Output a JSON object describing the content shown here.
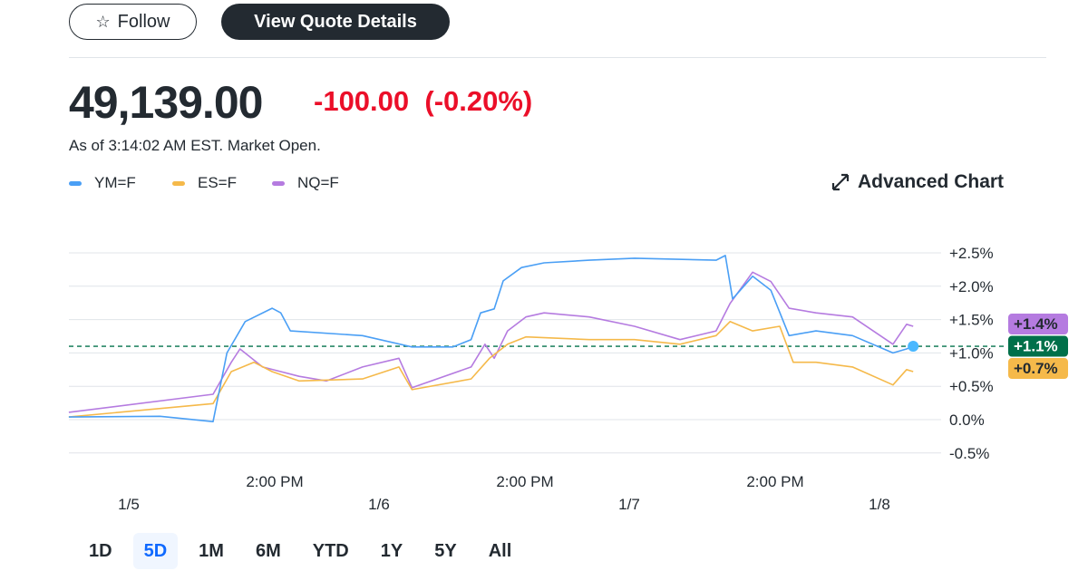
{
  "header": {
    "follow_label": "Follow",
    "follow_icon": "star-outline-icon",
    "quote_label": "View Quote Details"
  },
  "quote": {
    "price": "49,139.00",
    "change": "-100.00",
    "change_pct": "(-0.20%)",
    "as_of": "As of 3:14:02 AM EST. Market Open.",
    "change_color": "#eb0f29"
  },
  "legend": [
    {
      "label": "YM=F",
      "color": "#4a9ff5"
    },
    {
      "label": "ES=F",
      "color": "#f5b94a"
    },
    {
      "label": "NQ=F",
      "color": "#b57be0"
    }
  ],
  "advanced_chart": {
    "label": "Advanced Chart",
    "icon": "expand-arrows-icon"
  },
  "timeframes": [
    {
      "label": "1D"
    },
    {
      "label": "5D",
      "selected": true
    },
    {
      "label": "1M"
    },
    {
      "label": "6M"
    },
    {
      "label": "YTD"
    },
    {
      "label": "1Y"
    },
    {
      "label": "5Y"
    },
    {
      "label": "All"
    }
  ],
  "chart_data": {
    "type": "line",
    "ylim": [
      -0.5,
      2.5
    ],
    "yticks": [
      "+2.5%",
      "+2.0%",
      "+1.5%",
      "+1.0%",
      "+0.5%",
      "0.0%",
      "-0.5%"
    ],
    "ytick_values": [
      2.5,
      2.0,
      1.5,
      1.0,
      0.5,
      0.0,
      -0.5
    ],
    "xticks": [
      {
        "x": "1/5 14:00",
        "label": "2:00 PM"
      },
      {
        "x": "1/6 14:00",
        "label": "2:00 PM"
      },
      {
        "x": "1/7 14:00",
        "label": "2:00 PM"
      }
    ],
    "date_ticks": [
      {
        "x": "1/5 00:00",
        "label": "1/5"
      },
      {
        "x": "1/6 00:00",
        "label": "1/6"
      },
      {
        "x": "1/7 00:00",
        "label": "1/7"
      },
      {
        "x": "1/8 00:00",
        "label": "1/8"
      }
    ],
    "grid": true,
    "reference_line": 1.1,
    "end_badges": [
      {
        "label": "+1.4%",
        "color": "#b57be0"
      },
      {
        "label": "+1.1%",
        "color": "#00704a"
      },
      {
        "label": "+0.7%",
        "color": "#f5b94a"
      }
    ],
    "series": [
      {
        "name": "YM=F",
        "color": "#4a9ff5",
        "points": [
          [
            "1/4 18:15",
            0.04
          ],
          [
            "1/5 03:00",
            0.05
          ],
          [
            "1/5 08:05",
            -0.03
          ],
          [
            "1/5 09:25",
            1.0
          ],
          [
            "1/5 11:10",
            1.47
          ],
          [
            "1/5 13:45",
            1.67
          ],
          [
            "1/5 14:35",
            1.6
          ],
          [
            "1/5 15:30",
            1.33
          ],
          [
            "1/5 22:25",
            1.26
          ],
          [
            "1/6 03:10",
            1.09
          ],
          [
            "1/6 07:05",
            1.09
          ],
          [
            "1/6 08:50",
            1.2
          ],
          [
            "1/6 09:45",
            1.6
          ],
          [
            "1/6 11:03",
            1.66
          ],
          [
            "1/6 11:55",
            2.08
          ],
          [
            "1/6 13:40",
            2.28
          ],
          [
            "1/6 15:50",
            2.35
          ],
          [
            "1/6 20:10",
            2.39
          ],
          [
            "1/7 00:30",
            2.42
          ],
          [
            "1/7 08:20",
            2.39
          ],
          [
            "1/7 09:13",
            2.46
          ],
          [
            "1/7 09:55",
            1.81
          ],
          [
            "1/7 11:50",
            2.15
          ],
          [
            "1/7 13:35",
            1.94
          ],
          [
            "1/7 15:20",
            1.26
          ],
          [
            "1/7 17:55",
            1.33
          ],
          [
            "1/7 21:25",
            1.26
          ],
          [
            "1/8 01:18",
            1.0
          ],
          [
            "1/8 02:36",
            1.06
          ],
          [
            "1/8 03:14",
            1.1
          ]
        ]
      },
      {
        "name": "ES=F",
        "color": "#f5b94a",
        "points": [
          [
            "1/4 18:15",
            0.04
          ],
          [
            "1/5 08:05",
            0.24
          ],
          [
            "1/5 09:50",
            0.72
          ],
          [
            "1/5 12:00",
            0.86
          ],
          [
            "1/5 13:45",
            0.72
          ],
          [
            "1/5 16:20",
            0.58
          ],
          [
            "1/5 22:25",
            0.61
          ],
          [
            "1/6 01:55",
            0.79
          ],
          [
            "1/6 03:10",
            0.45
          ],
          [
            "1/6 08:50",
            0.61
          ],
          [
            "1/6 10:36",
            0.92
          ],
          [
            "1/6 12:20",
            1.13
          ],
          [
            "1/6 14:05",
            1.24
          ],
          [
            "1/6 20:10",
            1.2
          ],
          [
            "1/7 00:30",
            1.2
          ],
          [
            "1/7 04:52",
            1.13
          ],
          [
            "1/7 08:20",
            1.26
          ],
          [
            "1/7 09:40",
            1.47
          ],
          [
            "1/7 11:50",
            1.33
          ],
          [
            "1/7 14:26",
            1.4
          ],
          [
            "1/7 15:44",
            0.86
          ],
          [
            "1/7 17:55",
            0.86
          ],
          [
            "1/7 21:25",
            0.79
          ],
          [
            "1/8 01:18",
            0.52
          ],
          [
            "1/8 02:36",
            0.75
          ],
          [
            "1/8 03:14",
            0.72
          ]
        ]
      },
      {
        "name": "NQ=F",
        "color": "#b57be0",
        "points": [
          [
            "1/4 18:15",
            0.11
          ],
          [
            "1/5 08:05",
            0.38
          ],
          [
            "1/5 09:50",
            0.86
          ],
          [
            "1/5 10:40",
            1.06
          ],
          [
            "1/5 12:50",
            0.79
          ],
          [
            "1/5 14:35",
            0.72
          ],
          [
            "1/5 16:20",
            0.65
          ],
          [
            "1/5 18:58",
            0.58
          ],
          [
            "1/5 22:25",
            0.79
          ],
          [
            "1/6 01:55",
            0.92
          ],
          [
            "1/6 03:10",
            0.48
          ],
          [
            "1/6 08:50",
            0.79
          ],
          [
            "1/6 10:10",
            1.13
          ],
          [
            "1/6 11:03",
            0.92
          ],
          [
            "1/6 12:20",
            1.33
          ],
          [
            "1/6 14:05",
            1.54
          ],
          [
            "1/6 15:50",
            1.6
          ],
          [
            "1/6 20:10",
            1.54
          ],
          [
            "1/7 00:30",
            1.4
          ],
          [
            "1/7 04:52",
            1.2
          ],
          [
            "1/7 08:20",
            1.33
          ],
          [
            "1/7 09:40",
            1.74
          ],
          [
            "1/7 11:50",
            2.21
          ],
          [
            "1/7 13:35",
            2.07
          ],
          [
            "1/7 15:20",
            1.67
          ],
          [
            "1/7 17:55",
            1.6
          ],
          [
            "1/7 21:25",
            1.54
          ],
          [
            "1/8 01:18",
            1.13
          ],
          [
            "1/8 02:36",
            1.43
          ],
          [
            "1/8 03:14",
            1.4
          ]
        ]
      }
    ]
  }
}
